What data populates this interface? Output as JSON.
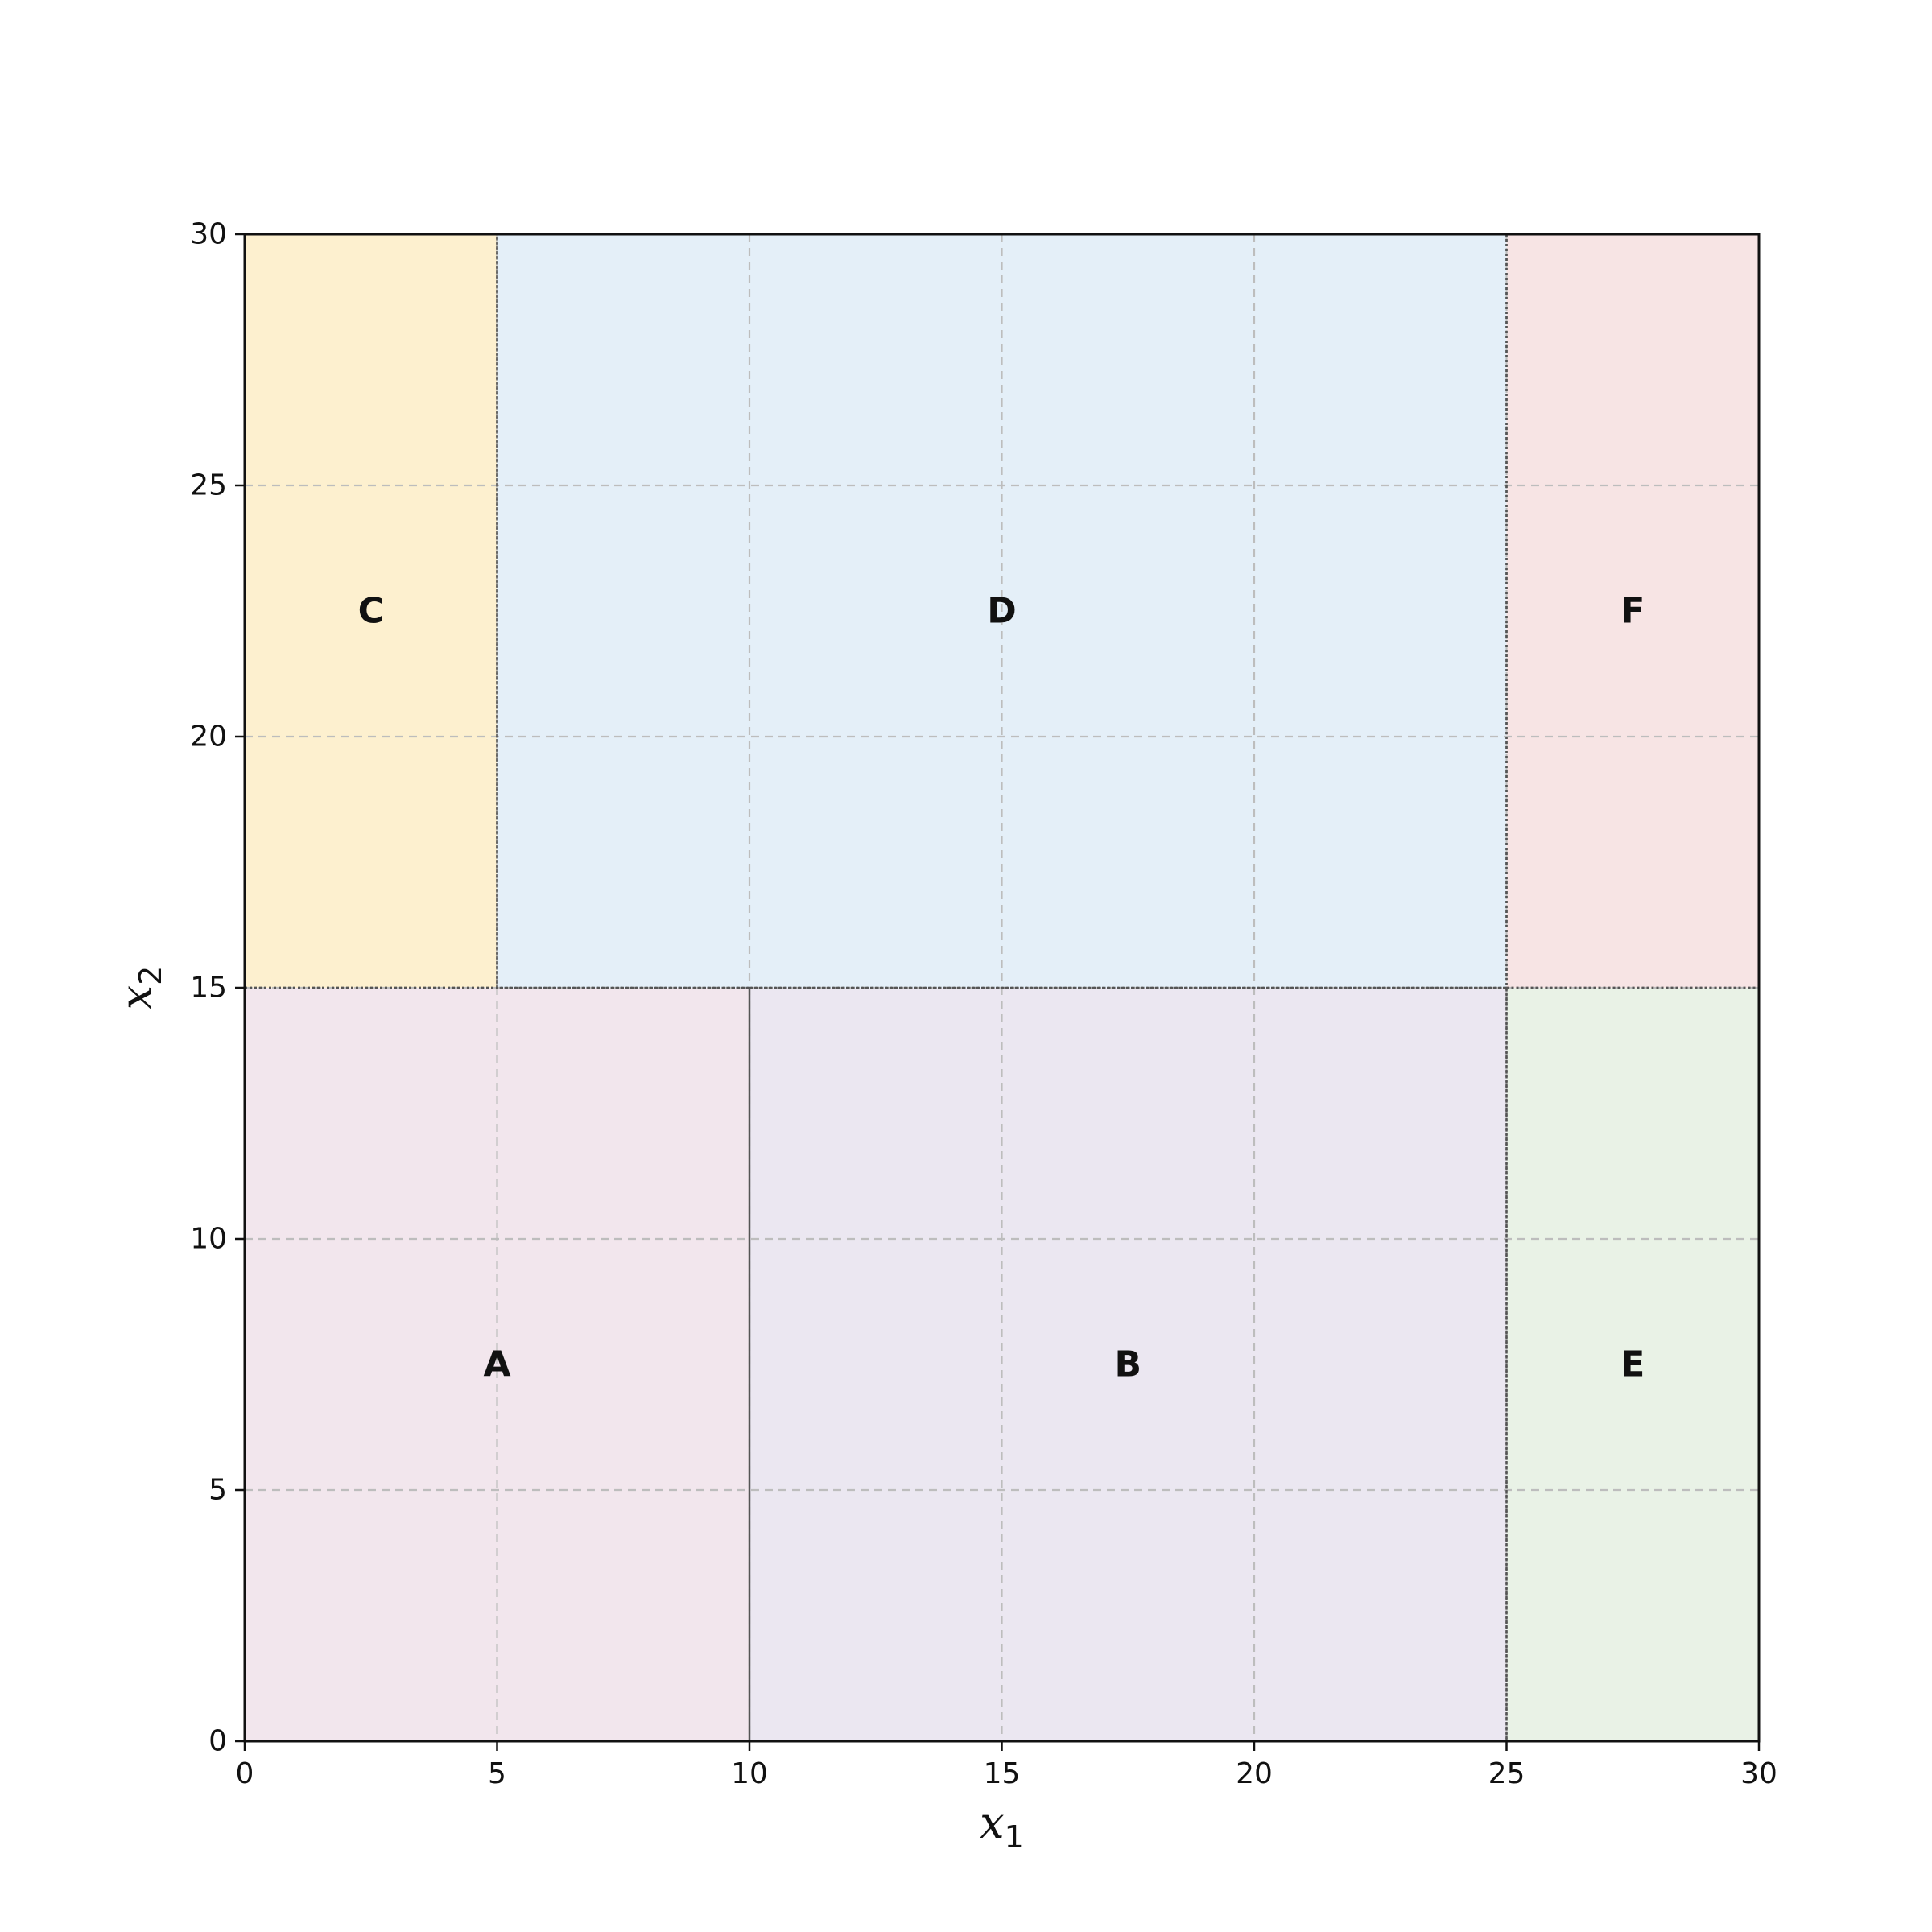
{
  "chart_data": {
    "type": "partition",
    "title": "",
    "xlabel": {
      "base": "x",
      "sub": "1"
    },
    "ylabel": {
      "base": "x",
      "sub": "2"
    },
    "xlim": [
      0,
      30
    ],
    "ylim": [
      0,
      30
    ],
    "xticks": [
      0,
      5,
      10,
      15,
      20,
      25,
      30
    ],
    "yticks": [
      0,
      5,
      10,
      15,
      20,
      25,
      30
    ],
    "grid": true,
    "regions": [
      {
        "label": "A",
        "x": [
          0,
          10
        ],
        "y": [
          0,
          15
        ],
        "color": "#f2e6ed"
      },
      {
        "label": "B",
        "x": [
          10,
          25
        ],
        "y": [
          0,
          15
        ],
        "color": "#ebe7f1"
      },
      {
        "label": "C",
        "x": [
          0,
          5
        ],
        "y": [
          15,
          30
        ],
        "color": "#fdf0cf"
      },
      {
        "label": "D",
        "x": [
          5,
          25
        ],
        "y": [
          15,
          30
        ],
        "color": "#e4eff8"
      },
      {
        "label": "E",
        "x": [
          25,
          30
        ],
        "y": [
          0,
          15
        ],
        "color": "#e9f2e6"
      },
      {
        "label": "F",
        "x": [
          25,
          30
        ],
        "y": [
          15,
          30
        ],
        "color": "#f7e4e4"
      }
    ]
  }
}
